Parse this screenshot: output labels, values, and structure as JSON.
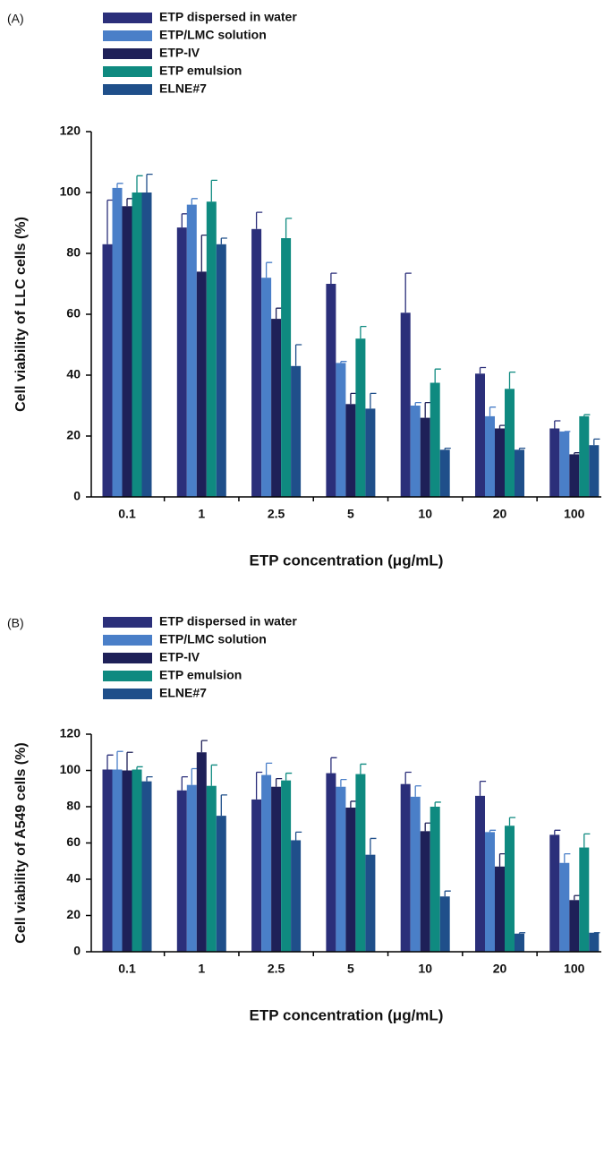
{
  "chart_data": [
    {
      "type": "bar",
      "panel_label": "(A)",
      "y_label": "Cell viability of LLC cells (%)",
      "x_label": "ETP concentration (μg/mL)",
      "categories": [
        "0.1",
        "1",
        "2.5",
        "5",
        "10",
        "20",
        "100"
      ],
      "ylim": [
        0,
        120
      ],
      "yticks": [
        0,
        20,
        40,
        60,
        80,
        100,
        120
      ],
      "series": [
        {
          "name": "ETP dispersed in water",
          "color": "#2b2f7a",
          "values": [
            83,
            88.5,
            88,
            70,
            60.5,
            40.5,
            22.5
          ],
          "errors": [
            14.5,
            4.5,
            5.5,
            3.5,
            13,
            2,
            2.5
          ]
        },
        {
          "name": "ETP/LMC solution",
          "color": "#4a7fc8",
          "values": [
            101.5,
            96,
            72,
            44,
            30,
            26.5,
            21.5
          ],
          "errors": [
            1.5,
            2,
            5,
            0.5,
            1,
            3,
            0
          ]
        },
        {
          "name": "ETP-IV",
          "color": "#1e2058",
          "values": [
            95.5,
            74,
            58.5,
            30.5,
            26,
            22.5,
            14
          ],
          "errors": [
            2.5,
            12,
            3.5,
            3.5,
            5,
            1,
            0.5
          ]
        },
        {
          "name": "ETP emulsion",
          "color": "#0f8a80",
          "values": [
            100,
            97,
            85,
            52,
            37.5,
            35.5,
            26.5
          ],
          "errors": [
            5.5,
            7,
            6.5,
            4,
            4.5,
            5.5,
            0.5
          ]
        },
        {
          "name": "ELNE#7",
          "color": "#1f4f8a",
          "values": [
            100,
            83,
            43,
            29,
            15.5,
            15.5,
            17
          ],
          "errors": [
            6,
            2,
            7,
            5,
            0.5,
            0.5,
            2
          ]
        }
      ]
    },
    {
      "type": "bar",
      "panel_label": "(B)",
      "y_label": "Cell viability of A549 cells (%)",
      "x_label": "ETP concentration (μg/mL)",
      "categories": [
        "0.1",
        "1",
        "2.5",
        "5",
        "10",
        "20",
        "100"
      ],
      "ylim": [
        0,
        120
      ],
      "yticks": [
        0,
        20,
        40,
        60,
        80,
        100,
        120
      ],
      "series": [
        {
          "name": "ETP dispersed in water",
          "color": "#2b2f7a",
          "values": [
            100.5,
            89,
            84,
            98.5,
            92.5,
            86,
            64.5
          ],
          "errors": [
            8,
            7.5,
            15,
            8.5,
            6.5,
            8,
            2.5
          ]
        },
        {
          "name": "ETP/LMC solution",
          "color": "#4a7fc8",
          "values": [
            100.5,
            92,
            97.5,
            91,
            85.5,
            66,
            49
          ],
          "errors": [
            10,
            9,
            6.5,
            4,
            6,
            1,
            5
          ]
        },
        {
          "name": "ETP-IV",
          "color": "#1e2058",
          "values": [
            100,
            110,
            91,
            79.5,
            66.5,
            47,
            28.5
          ],
          "errors": [
            10,
            6.5,
            4.5,
            3.5,
            4.5,
            7,
            2.5
          ]
        },
        {
          "name": "ETP emulsion",
          "color": "#0f8a80",
          "values": [
            100.5,
            91.5,
            94.5,
            98,
            80,
            69.5,
            57.5
          ],
          "errors": [
            1.5,
            11.5,
            4,
            5.5,
            2.5,
            4.5,
            7.5
          ]
        },
        {
          "name": "ELNE#7",
          "color": "#1f4f8a",
          "values": [
            94,
            75,
            61.5,
            53.5,
            30.5,
            10,
            10.5
          ],
          "errors": [
            2.5,
            11.5,
            4.5,
            9,
            3,
            0.5,
            0
          ]
        }
      ]
    }
  ]
}
